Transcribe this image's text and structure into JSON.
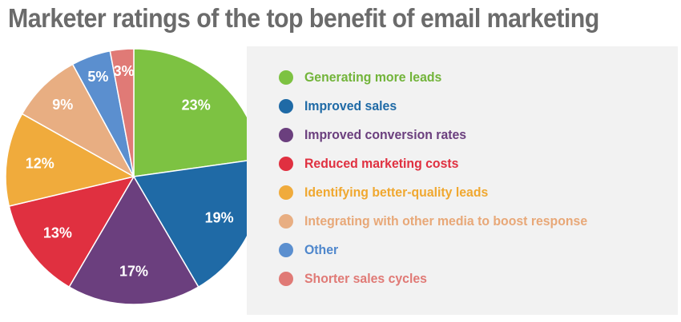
{
  "chart_data": {
    "type": "pie",
    "title": "Marketer ratings of the top benefit of email marketing",
    "legend_position": "right",
    "slices": [
      {
        "label": "Generating more leads",
        "value": 23,
        "display": "23%",
        "color": "#7dc242",
        "text_color": "#72b43a"
      },
      {
        "label": "Improved sales",
        "value": 19,
        "display": "19%",
        "color": "#1f6aa6",
        "text_color": "#1f6aa6"
      },
      {
        "label": "Improved conversion rates",
        "value": 17,
        "display": "17%",
        "color": "#6b3f7e",
        "text_color": "#6b3f7e"
      },
      {
        "label": "Reduced marketing costs",
        "value": 13,
        "display": "13%",
        "color": "#e03040",
        "text_color": "#e03040"
      },
      {
        "label": "Identifying better-quality leads",
        "value": 12,
        "display": "12%",
        "color": "#f0ab3c",
        "text_color": "#f0a830"
      },
      {
        "label": "Integrating with other media to boost response",
        "value": 9,
        "display": "9%",
        "color": "#e8ae82",
        "text_color": "#e8a878"
      },
      {
        "label": "Other",
        "value": 5,
        "display": "5%",
        "color": "#5b8fcf",
        "text_color": "#4f87cc"
      },
      {
        "label": "Shorter sales cycles",
        "value": 3,
        "display": "3%",
        "color": "#e07a76",
        "text_color": "#e07a76"
      }
    ]
  }
}
